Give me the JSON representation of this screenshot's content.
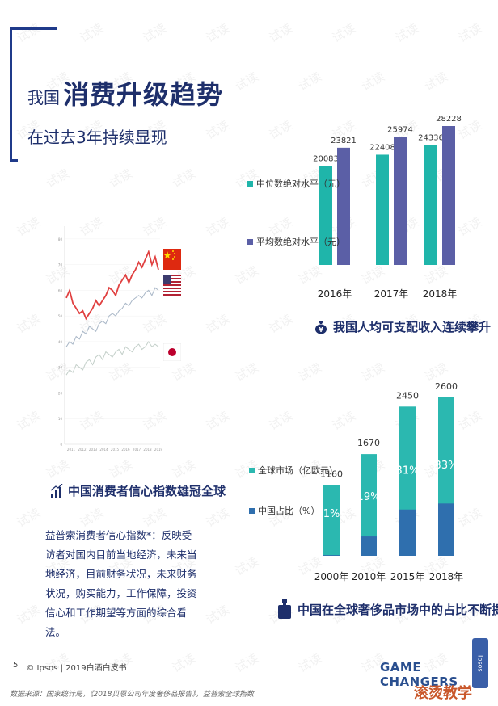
{
  "header": {
    "line1_prefix": "我国",
    "line1_highlight": "消费升级趋势",
    "line2": "在过去3年持续显现"
  },
  "chart_data": [
    {
      "type": "bar",
      "categories": [
        "2016年",
        "2017年",
        "2018年"
      ],
      "series": [
        {
          "name": "中位数绝对水平（元）",
          "color": "#1fb5aa",
          "values": [
            20083,
            22408,
            24336
          ]
        },
        {
          "name": "平均数绝对水平（元）",
          "color": "#5b5fa6",
          "values": [
            23821,
            25974,
            28228
          ]
        }
      ],
      "ylim": [
        0,
        30000
      ],
      "title": "我国人均可支配收入连续攀升"
    },
    {
      "type": "bar",
      "categories": [
        "2000年",
        "2010年",
        "2015年",
        "2018年"
      ],
      "series": [
        {
          "name": "全球市场（亿欧元）",
          "color": "#2bb8b0",
          "values": [
            1160,
            1670,
            2450,
            2600
          ]
        },
        {
          "name": "中国占比（%）",
          "color": "#2f6fae",
          "values": [
            1,
            19,
            31,
            33
          ]
        }
      ],
      "share_labels": [
        "1%",
        "19%",
        "31%",
        "33%"
      ],
      "ylim": [
        0,
        2800
      ],
      "title": "中国在全球奢侈品市场中的占比不断提高"
    },
    {
      "type": "line",
      "title": "中国消费者信心指数雄冠全球",
      "x_ticks": [
        "2011",
        "2012",
        "2013",
        "2014",
        "2015",
        "2016",
        "2017",
        "2018",
        "2019"
      ],
      "y_ticks": [
        "80",
        "70",
        "60",
        "50",
        "40",
        "30",
        "20",
        "10",
        "0"
      ],
      "ylim": [
        0,
        85
      ],
      "series": [
        {
          "country": "China",
          "color": "#e04040",
          "values": [
            57,
            60,
            55,
            53,
            51,
            52,
            49,
            51,
            53,
            56,
            54,
            56,
            58,
            61,
            60,
            58,
            62,
            64,
            66,
            63,
            66,
            68,
            71,
            69,
            72,
            75,
            70,
            73,
            68
          ]
        },
        {
          "country": "USA",
          "color": "#a9b7c7",
          "values": [
            38,
            40,
            39,
            42,
            41,
            44,
            43,
            46,
            45,
            44,
            47,
            48,
            47,
            50,
            51,
            50,
            52,
            53,
            55,
            54,
            56,
            57,
            58,
            57,
            59,
            60,
            58,
            61,
            60
          ]
        },
        {
          "country": "Japan",
          "color": "#c3cfc9",
          "values": [
            27,
            29,
            28,
            31,
            30,
            29,
            32,
            33,
            31,
            34,
            35,
            33,
            36,
            35,
            34,
            36,
            37,
            35,
            38,
            37,
            36,
            38,
            39,
            37,
            38,
            40,
            38,
            39,
            38
          ]
        }
      ]
    }
  ],
  "income_section": {
    "title": "我国人均可支配收入连续攀升"
  },
  "luxury_section": {
    "title": "中国在全球奢侈品市场中的占比不断提高"
  },
  "confidence_section": {
    "title": "中国消费者信心指数雄冠全球",
    "description": "益普索消费者信心指数*：反映受访者对国内目前当地经济，未来当地经济，目前财务状况，未来财务状况，购买能力，工作保障，投资信心和工作期望等方面的综合看法。"
  },
  "footer": {
    "page_number": "5",
    "copyright": "© Ipsos | 2019白酒白皮书",
    "brand": "GAME CHANGERS",
    "logo_text": "Ipsos",
    "source": "数据来源：国家统计局，《2018贝恩公司年度奢侈品报告》，益普索全球指数",
    "corner_mark": "滚烫教学"
  },
  "watermark_text": "试读",
  "colors": {
    "navy": "#1e2f6b",
    "teal": "#1fb5aa",
    "purple": "#5b5fa6",
    "blue": "#2f6fae"
  }
}
